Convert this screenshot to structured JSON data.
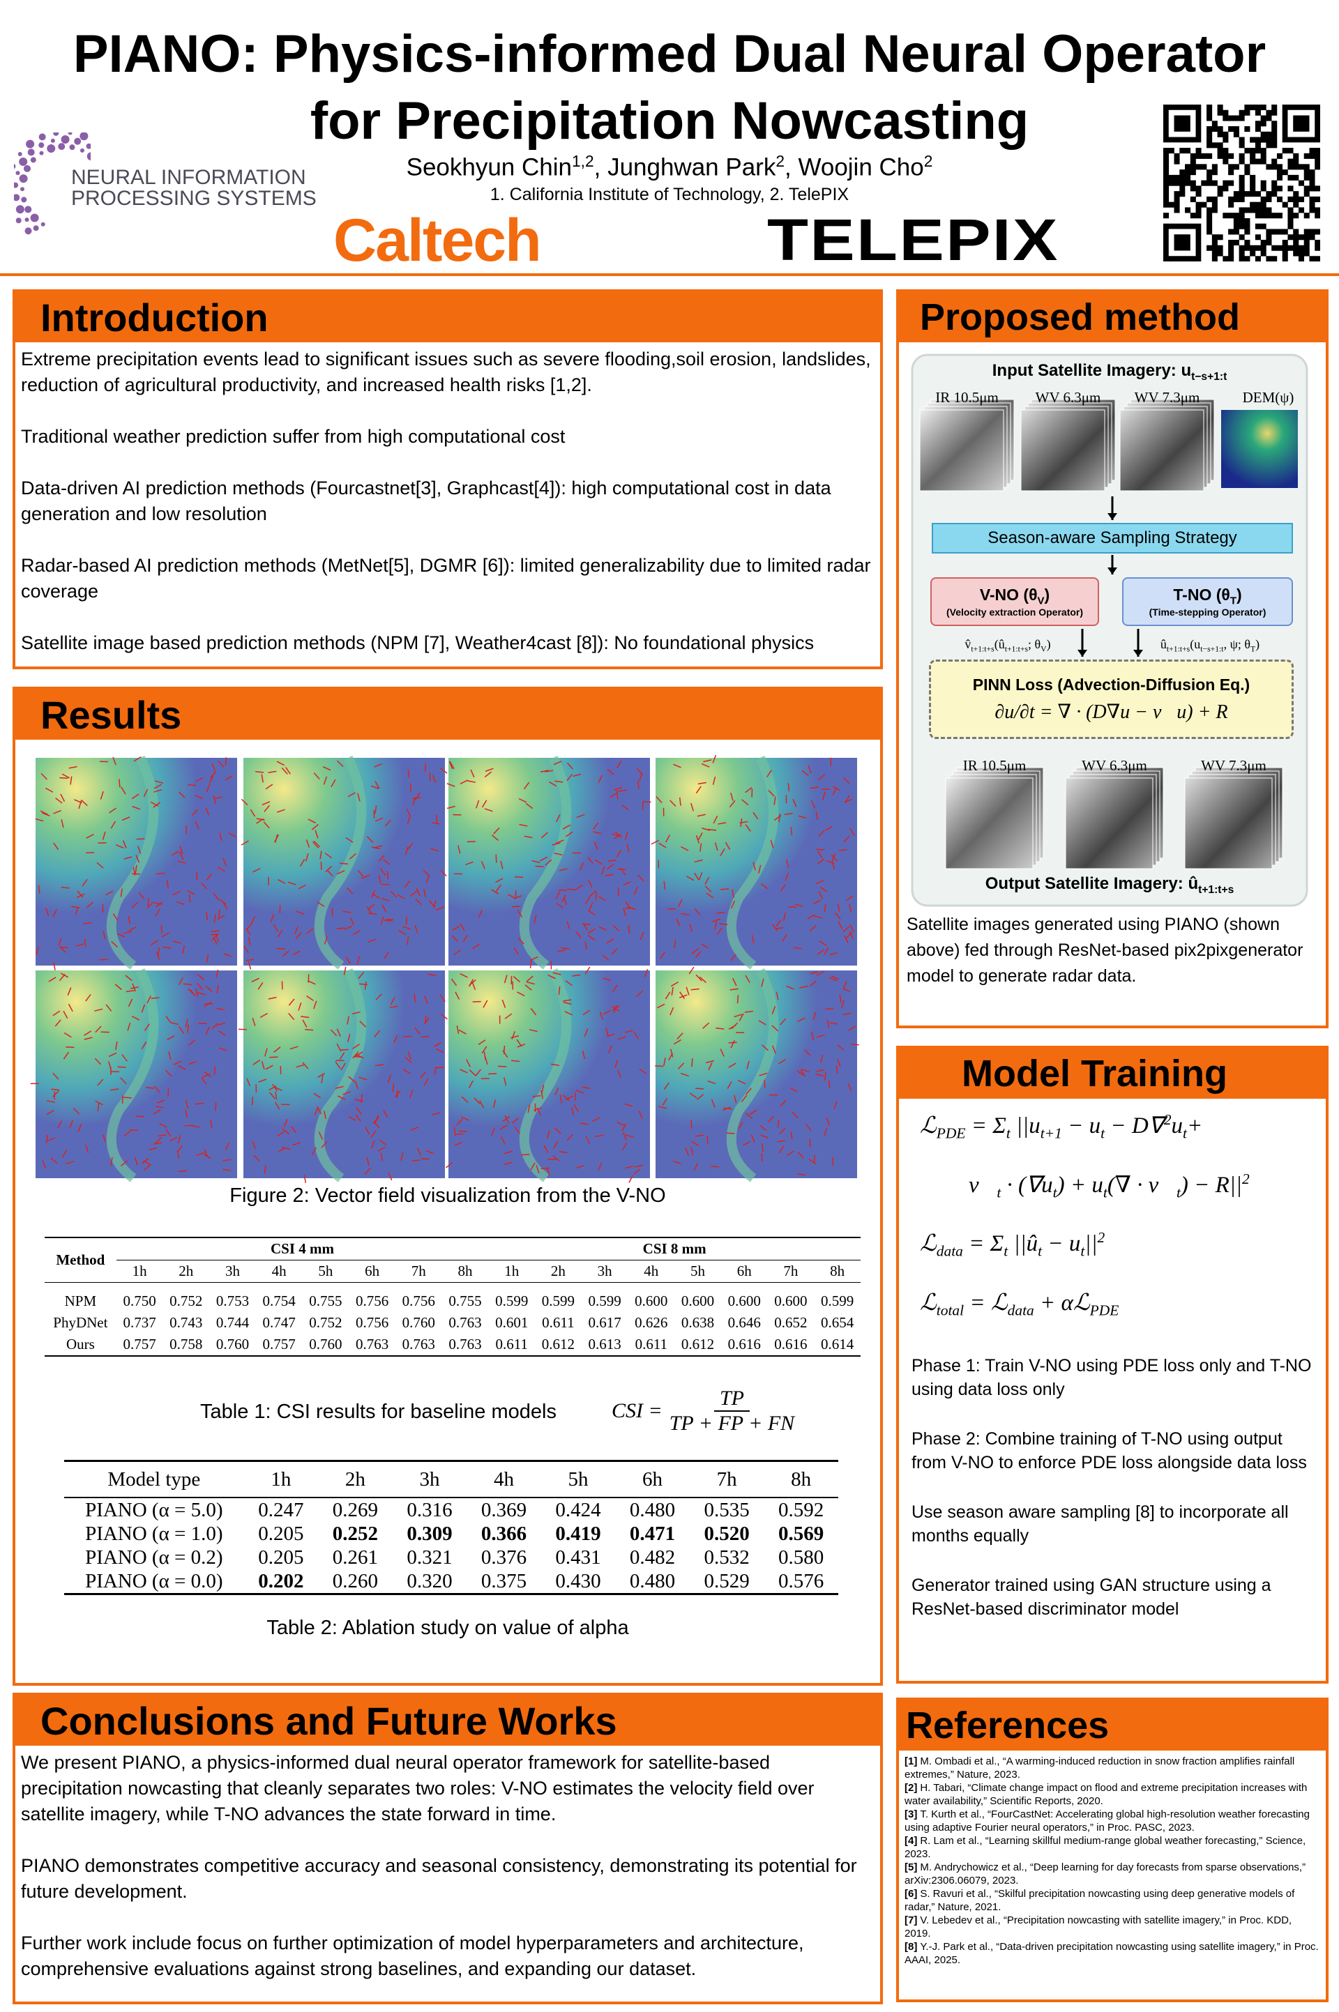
{
  "header": {
    "title_line1": "PIANO: Physics-informed Dual Neural Operator",
    "title_line2": "for Precipitation Nowcasting",
    "authors": [
      {
        "name": "Seokhyun Chin",
        "sup": "1,2"
      },
      {
        "name": ", Junghwan Park",
        "sup": "2"
      },
      {
        "name": ", Woojin Cho",
        "sup": "2"
      }
    ],
    "affiliations": "1. California Institute of Technology, 2. TelePIX",
    "logo_neurips_line1": "NEURAL INFORMATION",
    "logo_neurips_line2": "PROCESSING SYSTEMS",
    "logo_caltech": "Caltech",
    "logo_telepix": "TELEPIX"
  },
  "introduction": {
    "title": "Introduction",
    "paragraphs": [
      "Extreme precipitation events lead to significant issues such as severe flooding,soil erosion, landslides, reduction of agricultural productivity, and increased health risks [1,2].",
      "Traditional weather prediction suffer from high computational cost",
      "Data-driven AI prediction methods (Fourcastnet[3], Graphcast[4]): high computational cost in data generation and low resolution",
      "Radar-based AI prediction methods (MetNet[5], DGMR [6]): limited generalizability due to limited radar coverage",
      "Satellite image based prediction methods (NPM [7], Weather4cast [8]): No foundational physics"
    ]
  },
  "results": {
    "title": "Results",
    "figure_caption": "Figure 2: Vector field visualization from the V-NO",
    "table1": {
      "method_header": "Method",
      "groups": [
        {
          "name": "CSI 4 mm",
          "hours": [
            "1h",
            "2h",
            "3h",
            "4h",
            "5h",
            "6h",
            "7h",
            "8h"
          ]
        },
        {
          "name": "CSI 8 mm",
          "hours": [
            "1h",
            "2h",
            "3h",
            "4h",
            "5h",
            "6h",
            "7h",
            "8h"
          ]
        }
      ],
      "rows": [
        {
          "method": "NPM",
          "values": [
            "0.750",
            "0.752",
            "0.753",
            "0.754",
            "0.755",
            "0.756",
            "0.756",
            "0.755",
            "0.599",
            "0.599",
            "0.599",
            "0.600",
            "0.600",
            "0.600",
            "0.600",
            "0.599"
          ]
        },
        {
          "method": "PhyDNet",
          "values": [
            "0.737",
            "0.743",
            "0.744",
            "0.747",
            "0.752",
            "0.756",
            "0.760",
            "0.763",
            "0.601",
            "0.611",
            "0.617",
            "0.626",
            "0.638",
            "0.646",
            "0.652",
            "0.654"
          ]
        },
        {
          "method": "Ours",
          "values": [
            "0.757",
            "0.758",
            "0.760",
            "0.757",
            "0.760",
            "0.763",
            "0.763",
            "0.763",
            "0.611",
            "0.612",
            "0.613",
            "0.611",
            "0.612",
            "0.616",
            "0.616",
            "0.614"
          ]
        }
      ]
    },
    "table1_caption": "Table 1: CSI results for baseline models",
    "csi_formula": {
      "lhs": "CSI =",
      "numerator": "TP",
      "denominator": "TP + FP + FN"
    },
    "table2": {
      "header": [
        "Model type",
        "1h",
        "2h",
        "3h",
        "4h",
        "5h",
        "6h",
        "7h",
        "8h"
      ],
      "rows": [
        {
          "model": "PIANO (α = 5.0)",
          "values": [
            "0.247",
            "0.269",
            "0.316",
            "0.369",
            "0.424",
            "0.480",
            "0.535",
            "0.592"
          ],
          "bold": [
            false,
            false,
            false,
            false,
            false,
            false,
            false,
            false
          ]
        },
        {
          "model": "PIANO (α = 1.0)",
          "values": [
            "0.205",
            "0.252",
            "0.309",
            "0.366",
            "0.419",
            "0.471",
            "0.520",
            "0.569"
          ],
          "bold": [
            false,
            true,
            true,
            true,
            true,
            true,
            true,
            true
          ]
        },
        {
          "model": "PIANO (α = 0.2)",
          "values": [
            "0.205",
            "0.261",
            "0.321",
            "0.376",
            "0.431",
            "0.482",
            "0.532",
            "0.580"
          ],
          "bold": [
            false,
            false,
            false,
            false,
            false,
            false,
            false,
            false
          ]
        },
        {
          "model": "PIANO (α = 0.0)",
          "values": [
            "0.202",
            "0.260",
            "0.320",
            "0.375",
            "0.430",
            "0.480",
            "0.529",
            "0.576"
          ],
          "bold": [
            true,
            false,
            false,
            false,
            false,
            false,
            false,
            false
          ]
        }
      ]
    },
    "table2_caption": "Table 2:  Ablation study on value of alpha"
  },
  "conclusions": {
    "title": "Conclusions and Future Works",
    "paragraphs": [
      "We present PIANO, a physics-informed dual neural operator framework for satellite-based precipitation nowcasting that cleanly separates two roles: V-NO estimates the velocity field over satellite imagery, while T-NO advances the state forward in time.",
      "PIANO demonstrates competitive accuracy and seasonal consistency, demonstrating its potential for future development.",
      "Further work include focus on further optimization of model hyperparameters and architecture, comprehensive evaluations against strong baselines, and expanding our dataset."
    ]
  },
  "proposed_method": {
    "title": "Proposed method",
    "input_title": [
      {
        "text": "Input Satellite Imagery:  u"
      },
      {
        "text": "t−s+1:t",
        "style": "sub"
      }
    ],
    "input_labels": [
      "IR 10.5μm",
      "WV 6.3μm",
      "WV 7.3μm",
      "DEM(ψ)"
    ],
    "sampling": "Season-aware Sampling Strategy",
    "vno_title": [
      {
        "text": "V-NO (θ"
      },
      {
        "text": "V",
        "style": "sub"
      },
      {
        "text": ")"
      }
    ],
    "vno_sub": "(Velocity extraction Operator)",
    "tno_title": [
      {
        "text": "T-NO (θ"
      },
      {
        "text": "T",
        "style": "sub"
      },
      {
        "text": ")"
      }
    ],
    "tno_sub": "(Time-stepping Operator)",
    "vno_output": [
      {
        "text": "v̂"
      },
      {
        "text": "t+1:t+s",
        "style": "sub"
      },
      {
        "text": "(û"
      },
      {
        "text": "t+1:t+s",
        "style": "sub"
      },
      {
        "text": "; θ"
      },
      {
        "text": "V",
        "style": "sub"
      },
      {
        "text": ")"
      }
    ],
    "tno_output": [
      {
        "text": "û"
      },
      {
        "text": "t+1:t+s",
        "style": "sub"
      },
      {
        "text": "(u"
      },
      {
        "text": "t−s+1:t",
        "style": "sub"
      },
      {
        "text": ", ψ; θ"
      },
      {
        "text": "T",
        "style": "sub"
      },
      {
        "text": ")"
      }
    ],
    "pinn_title": "PINN Loss (Advection-Diffusion Eq.)",
    "pinn_equation": "∂u/∂t = ∇ · (D∇u − v⃗u) + R",
    "output_labels": [
      "IR 10.5μm",
      "WV 6.3μm",
      "WV 7.3μm"
    ],
    "output_title": [
      {
        "text": "Output Satellite Imagery:  û"
      },
      {
        "text": "t+1:t+s",
        "style": "sub"
      }
    ],
    "caption": "Satellite images generated using PIANO (shown above) fed through ResNet-based pix2pixgenerator model to generate radar data."
  },
  "model_training": {
    "title": "Model Training",
    "equations": [
      [
        {
          "text": "ℒ"
        },
        {
          "text": "PDE",
          "style": "sub"
        },
        {
          "text": " = Σ"
        },
        {
          "text": "t",
          "style": "sub"
        },
        {
          "text": " ||u"
        },
        {
          "text": "t+1",
          "style": "sub"
        },
        {
          "text": " − u"
        },
        {
          "text": "t",
          "style": "sub"
        },
        {
          "text": " − D∇"
        },
        {
          "text": "2",
          "style": "sup"
        },
        {
          "text": "u"
        },
        {
          "text": "t",
          "style": "sub"
        },
        {
          "text": "+"
        }
      ],
      [
        {
          "text": "v⃗"
        },
        {
          "text": "t",
          "style": "sub"
        },
        {
          "text": " · (∇u"
        },
        {
          "text": "t",
          "style": "sub"
        },
        {
          "text": ") + u"
        },
        {
          "text": "t",
          "style": "sub"
        },
        {
          "text": "(∇ · v⃗"
        },
        {
          "text": "t",
          "style": "sub"
        },
        {
          "text": ") − R||"
        },
        {
          "text": "2",
          "style": "sup"
        }
      ],
      [
        {
          "text": "ℒ"
        },
        {
          "text": "data",
          "style": "sub"
        },
        {
          "text": " = Σ"
        },
        {
          "text": "t",
          "style": "sub"
        },
        {
          "text": " ||û"
        },
        {
          "text": "t",
          "style": "sub"
        },
        {
          "text": " − u"
        },
        {
          "text": "t",
          "style": "sub"
        },
        {
          "text": "||"
        },
        {
          "text": "2",
          "style": "sup"
        }
      ],
      [
        {
          "text": "ℒ"
        },
        {
          "text": "total",
          "style": "sub"
        },
        {
          "text": " = ℒ"
        },
        {
          "text": "data",
          "style": "sub"
        },
        {
          "text": " + αℒ"
        },
        {
          "text": "PDE",
          "style": "sub"
        }
      ]
    ],
    "paragraphs": [
      "Phase 1: Train V-NO using PDE loss only and T-NO using data loss only",
      "Phase 2: Combine training of T-NO using output from V-NO to enforce PDE loss alongside data loss",
      "Use season aware sampling [8] to incorporate all months equally",
      "Generator trained using GAN structure using a ResNet-based discriminator model"
    ]
  },
  "references": {
    "title": "References",
    "items": [
      {
        "num": "[1]",
        "text": "M. Ombadi et al., “A warming-induced reduction in snow fraction amplifies rainfall extremes,” Nature, 2023."
      },
      {
        "num": "[2]",
        "text": "H. Tabari, “Climate change impact on flood and extreme precipitation increases with water availability,” Scientific Reports, 2020."
      },
      {
        "num": "[3]",
        "text": "T. Kurth et al., “FourCastNet: Accelerating global high-resolution weather forecasting using adaptive Fourier neural operators,” in Proc. PASC, 2023."
      },
      {
        "num": "[4]",
        "text": "R. Lam et al., “Learning skillful medium-range global weather forecasting,” Science, 2023."
      },
      {
        "num": "[5]",
        "text": "M. Andrychowicz et al., “Deep learning for day forecasts from sparse observations,” arXiv:2306.06079, 2023."
      },
      {
        "num": "[6]",
        "text": "S. Ravuri et al., “Skilful precipitation nowcasting using deep generative models of radar,” Nature, 2021."
      },
      {
        "num": "[7]",
        "text": "V. Lebedev et al., “Precipitation nowcasting with satellite imagery,” in Proc. KDD, 2019."
      },
      {
        "num": "[8]",
        "text": "Y.-J. Park et al., “Data-driven precipitation nowcasting using satellite imagery,” in Proc. AAAI, 2025."
      }
    ]
  }
}
